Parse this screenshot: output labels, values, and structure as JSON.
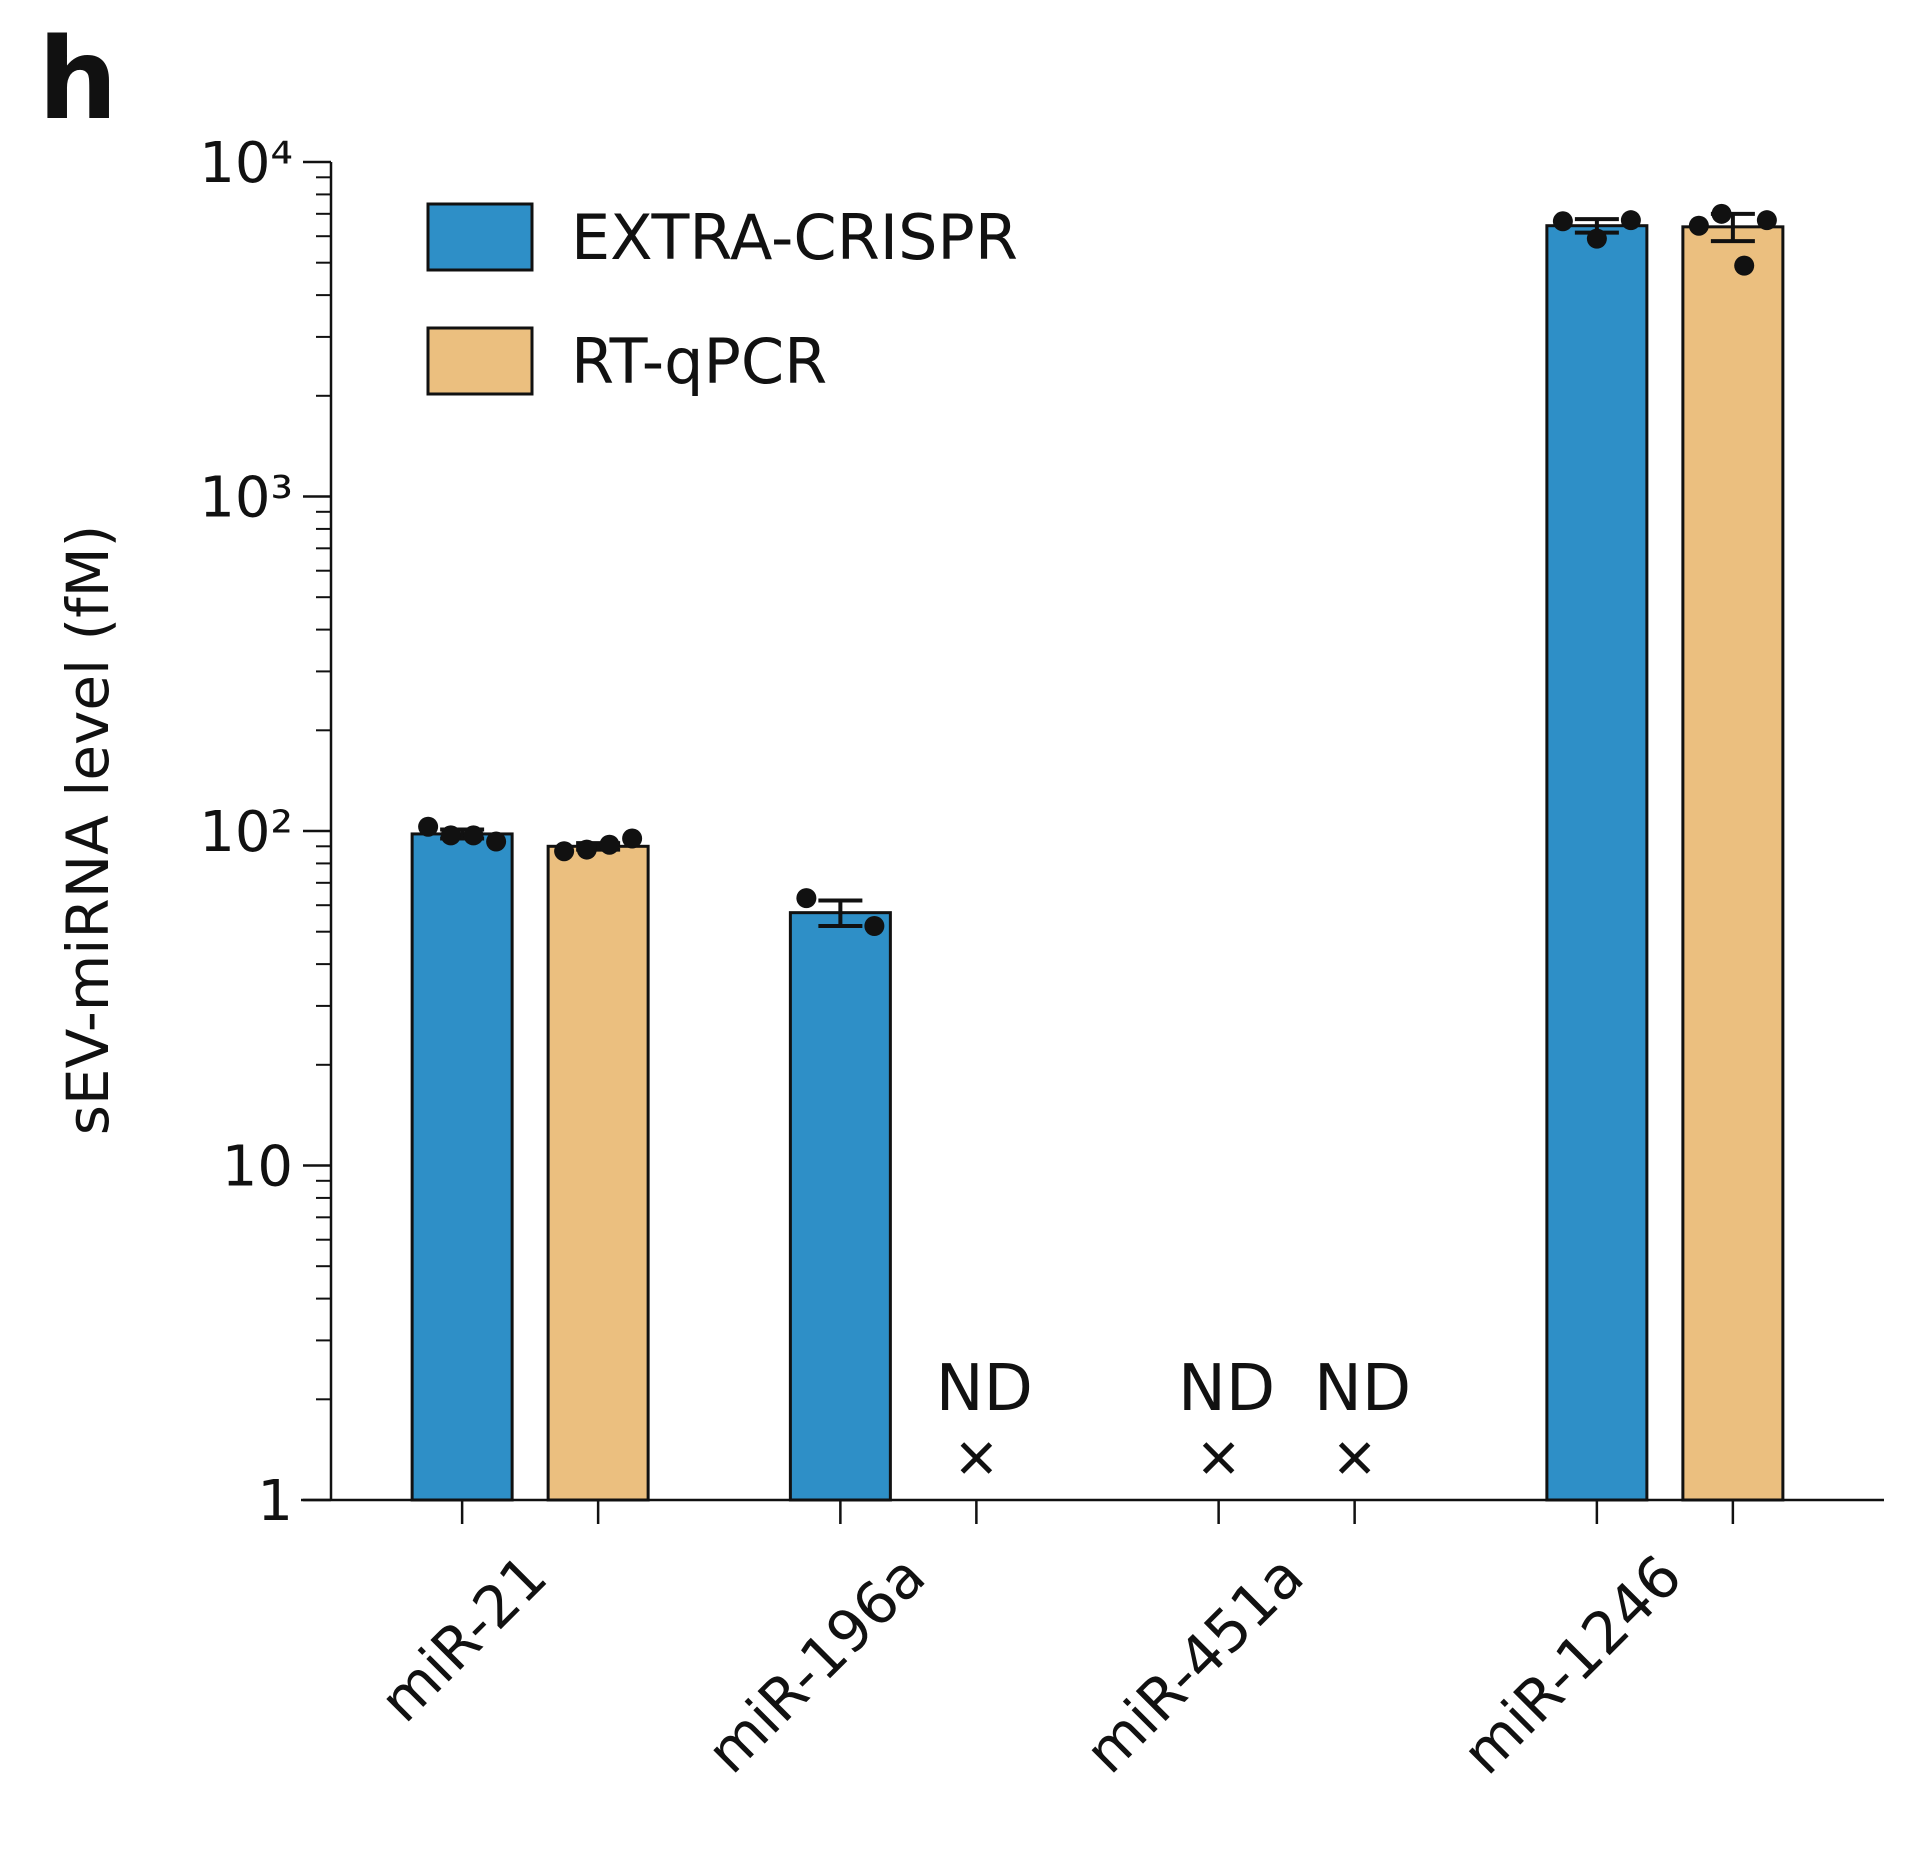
{
  "panel_label": "h",
  "chart_data": {
    "type": "bar",
    "y_label": "sEV-miRNA level (fM)",
    "log_scale": true,
    "categories": [
      "miR-21",
      "miR-196a",
      "miR-451a",
      "miR-1246"
    ],
    "series": [
      {
        "name": "EXTRA-CRISPR",
        "color": "#2e8fc7",
        "values": [
          98,
          57,
          null,
          6450
        ],
        "errors": [
          3,
          5,
          null,
          300
        ],
        "points": [
          [
            103,
            97,
            97,
            93
          ],
          [
            63,
            52
          ],
          null,
          [
            6650,
            5900,
            6700
          ]
        ]
      },
      {
        "name": "RT-qPCR",
        "color": "#ebbf7f",
        "values": [
          90,
          null,
          null,
          6400
        ],
        "errors": [
          2,
          null,
          null,
          600
        ],
        "points": [
          [
            87,
            88,
            91,
            95
          ],
          null,
          null,
          [
            6450,
            7000,
            4900,
            6700
          ]
        ]
      }
    ],
    "nd_label": "ND",
    "ylim": [
      1,
      10000
    ],
    "yticks": [
      1,
      10,
      {
        "value": 100,
        "label": "10²"
      },
      {
        "value": 1000,
        "label": "10³"
      },
      {
        "value": 10000,
        "label": "10⁴"
      }
    ],
    "yminorticks": [
      2,
      3,
      4,
      5,
      6,
      7,
      8,
      9,
      20,
      30,
      40,
      50,
      60,
      70,
      80,
      90,
      200,
      300,
      400,
      500,
      600,
      700,
      800,
      900,
      2000,
      3000,
      4000,
      5000,
      6000,
      7000,
      8000,
      9000
    ],
    "legend": "upper left"
  }
}
